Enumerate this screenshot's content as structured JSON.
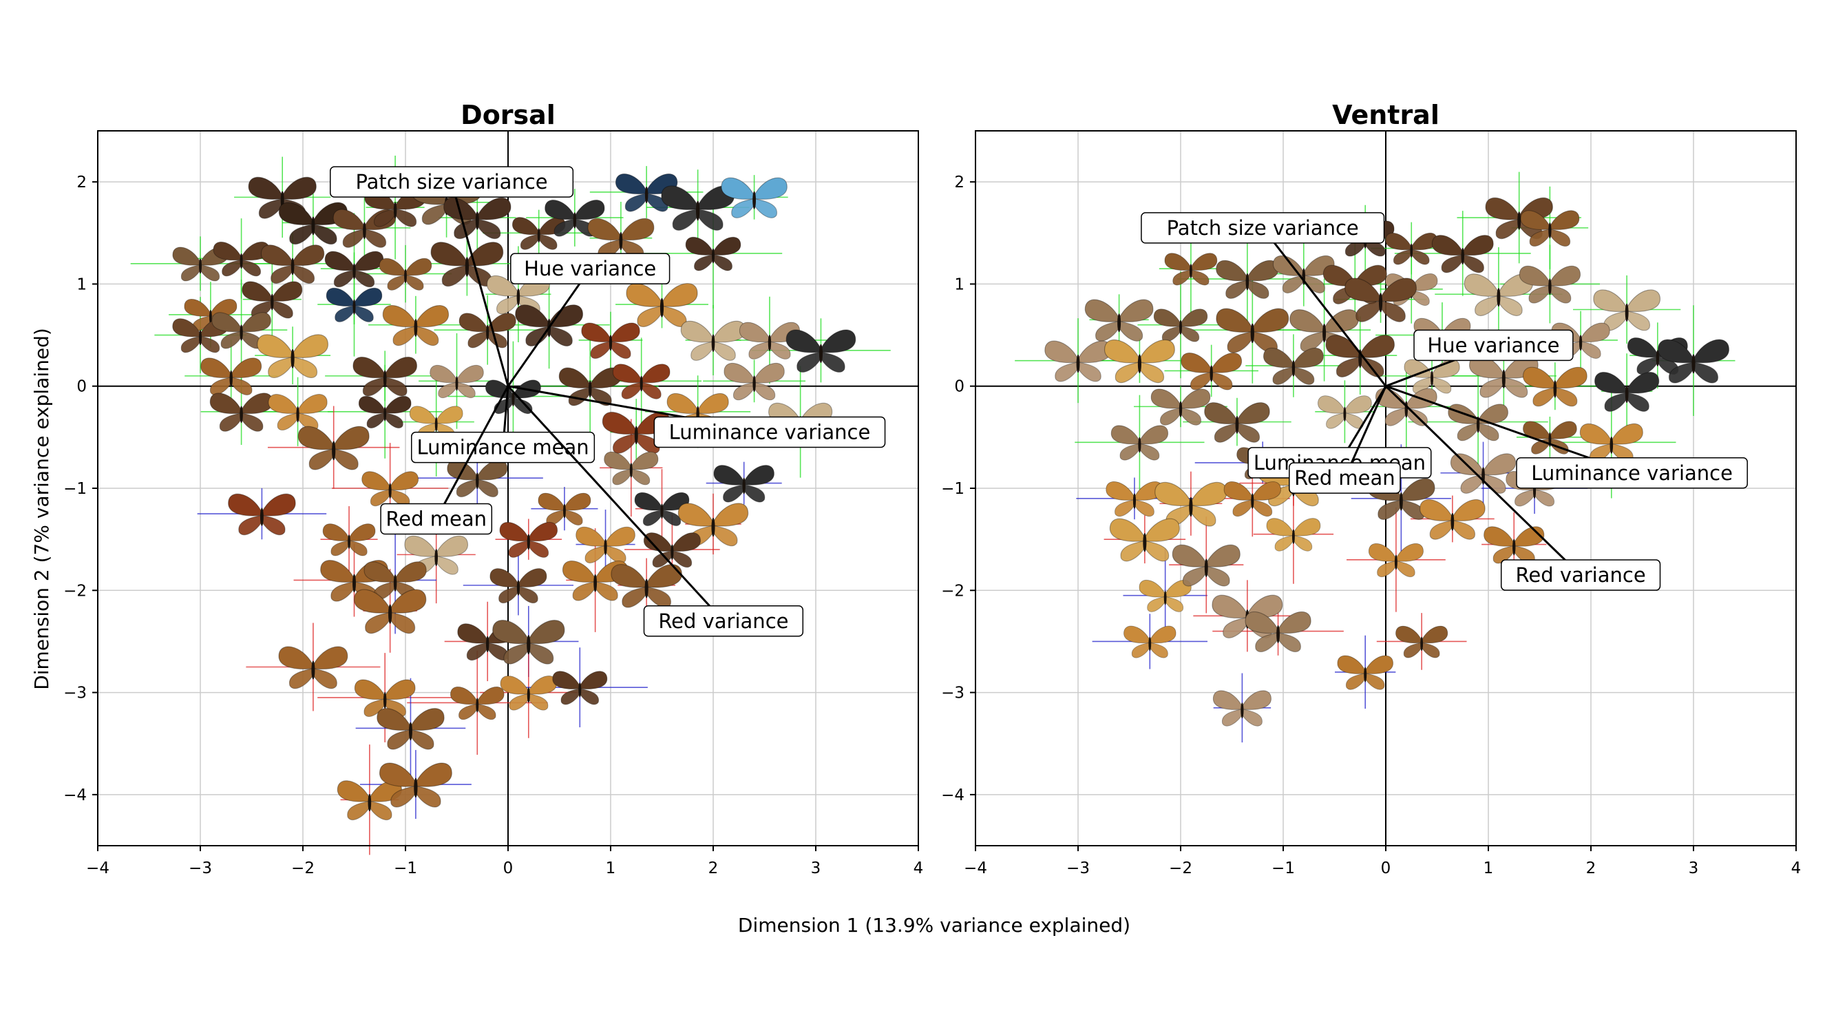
{
  "figure": {
    "xlabel": "Dimension 1 (13.9% variance explained)",
    "ylabel": "Dimension 2 (7% variance explained)"
  },
  "colors": {
    "frame": "#000000",
    "grid": "#cccccc",
    "axis_line": "#000000",
    "errorbar_green": "#22dd22",
    "errorbar_blue": "#2222cc",
    "errorbar_red": "#dd2222",
    "wing_palette": [
      "#3a2618",
      "#4a3020",
      "#5c3a22",
      "#6b4528",
      "#7a5a3a",
      "#8b5a2b",
      "#a0642a",
      "#b8782e",
      "#c98a3a",
      "#d4a04a",
      "#9a7a58",
      "#b09070",
      "#c8b08a",
      "#2e2e2e",
      "#1f3a5a",
      "#5fa8d3",
      "#8a3a1a"
    ]
  },
  "chart_data": [
    {
      "type": "scatter",
      "title": "Dorsal",
      "xlim": [
        -4,
        4
      ],
      "ylim": [
        -4.5,
        2.5
      ],
      "xticks": [
        -4,
        -3,
        -2,
        -1,
        0,
        1,
        2,
        3,
        4
      ],
      "yticks": [
        -4,
        -3,
        -2,
        -1,
        0,
        1,
        2
      ],
      "xtick_labels": [
        "−4",
        "−3",
        "−2",
        "−1",
        "0",
        "1",
        "2",
        "3",
        "4"
      ],
      "ytick_labels": [
        "−4",
        "−3",
        "−2",
        "−1",
        "0",
        "1",
        "2"
      ],
      "grid": true,
      "loadings": [
        {
          "label": "Patch size variance",
          "x": -0.55,
          "y": 2.0
        },
        {
          "label": "Hue variance",
          "x": 0.8,
          "y": 1.15
        },
        {
          "label": "Luminance variance",
          "x": 2.55,
          "y": -0.45
        },
        {
          "label": "Luminance mean",
          "x": -0.05,
          "y": -0.6
        },
        {
          "label": "Red mean",
          "x": -0.7,
          "y": -1.3
        },
        {
          "label": "Red variance",
          "x": 2.1,
          "y": -2.3
        }
      ],
      "points": [
        {
          "x": -2.2,
          "y": 1.85,
          "c": 1
        },
        {
          "x": -1.9,
          "y": 1.6,
          "c": 0
        },
        {
          "x": -1.4,
          "y": 1.55,
          "c": 3
        },
        {
          "x": -1.1,
          "y": 1.75,
          "c": 2
        },
        {
          "x": -0.6,
          "y": 1.8,
          "c": 4
        },
        {
          "x": -0.3,
          "y": 1.65,
          "c": 1
        },
        {
          "x": 0.3,
          "y": 1.5,
          "c": 2
        },
        {
          "x": 0.65,
          "y": 1.65,
          "c": 13
        },
        {
          "x": 1.35,
          "y": 1.9,
          "c": 14
        },
        {
          "x": 1.85,
          "y": 1.75,
          "c": 13
        },
        {
          "x": 2.4,
          "y": 1.85,
          "c": 15
        },
        {
          "x": 2.0,
          "y": 1.3,
          "c": 1
        },
        {
          "x": 1.1,
          "y": 1.45,
          "c": 5
        },
        {
          "x": -3.0,
          "y": 1.2,
          "c": 4
        },
        {
          "x": -2.6,
          "y": 1.25,
          "c": 2
        },
        {
          "x": -2.1,
          "y": 1.2,
          "c": 3
        },
        {
          "x": -1.5,
          "y": 1.15,
          "c": 1
        },
        {
          "x": -1.0,
          "y": 1.1,
          "c": 5
        },
        {
          "x": -0.4,
          "y": 1.2,
          "c": 2
        },
        {
          "x": 0.1,
          "y": 0.9,
          "c": 12
        },
        {
          "x": -2.9,
          "y": 0.7,
          "c": 6
        },
        {
          "x": -2.3,
          "y": 0.85,
          "c": 2
        },
        {
          "x": -1.5,
          "y": 0.8,
          "c": 14
        },
        {
          "x": -0.9,
          "y": 0.6,
          "c": 7
        },
        {
          "x": -0.2,
          "y": 0.55,
          "c": 3
        },
        {
          "x": 0.4,
          "y": 0.6,
          "c": 1
        },
        {
          "x": 1.0,
          "y": 0.45,
          "c": 16
        },
        {
          "x": 1.5,
          "y": 0.8,
          "c": 8
        },
        {
          "x": 2.0,
          "y": 0.45,
          "c": 12
        },
        {
          "x": 2.55,
          "y": 0.45,
          "c": 11
        },
        {
          "x": 3.05,
          "y": 0.35,
          "c": 13
        },
        {
          "x": -3.0,
          "y": 0.5,
          "c": 3
        },
        {
          "x": -2.6,
          "y": 0.55,
          "c": 4
        },
        {
          "x": -2.7,
          "y": 0.1,
          "c": 6
        },
        {
          "x": -2.1,
          "y": 0.3,
          "c": 9
        },
        {
          "x": -1.2,
          "y": 0.1,
          "c": 2
        },
        {
          "x": -0.5,
          "y": 0.05,
          "c": 11
        },
        {
          "x": 0.05,
          "y": -0.1,
          "c": 13
        },
        {
          "x": 0.8,
          "y": 0.0,
          "c": 2
        },
        {
          "x": 1.3,
          "y": 0.05,
          "c": 16
        },
        {
          "x": 2.4,
          "y": 0.05,
          "c": 11
        },
        {
          "x": -2.6,
          "y": -0.25,
          "c": 3
        },
        {
          "x": -2.05,
          "y": -0.25,
          "c": 8
        },
        {
          "x": -1.2,
          "y": -0.25,
          "c": 1
        },
        {
          "x": -0.7,
          "y": -0.35,
          "c": 9
        },
        {
          "x": 1.25,
          "y": -0.45,
          "c": 16
        },
        {
          "x": 1.85,
          "y": -0.25,
          "c": 8
        },
        {
          "x": 2.85,
          "y": -0.35,
          "c": 12
        },
        {
          "x": -1.7,
          "y": -0.6,
          "c": 5
        },
        {
          "x": 1.2,
          "y": -0.8,
          "c": 10
        },
        {
          "x": 2.3,
          "y": -0.95,
          "c": 13
        },
        {
          "x": -1.15,
          "y": -1.0,
          "c": 7
        },
        {
          "x": -0.3,
          "y": -0.9,
          "c": 4
        },
        {
          "x": 0.55,
          "y": -1.2,
          "c": 6
        },
        {
          "x": 1.5,
          "y": -1.2,
          "c": 13
        },
        {
          "x": -2.4,
          "y": -1.25,
          "c": 16
        },
        {
          "x": 2.0,
          "y": -1.35,
          "c": 8
        },
        {
          "x": -1.55,
          "y": -1.5,
          "c": 6
        },
        {
          "x": -0.7,
          "y": -1.65,
          "c": 12
        },
        {
          "x": 0.2,
          "y": -1.5,
          "c": 16
        },
        {
          "x": 0.95,
          "y": -1.55,
          "c": 8
        },
        {
          "x": 1.6,
          "y": -1.6,
          "c": 2
        },
        {
          "x": -1.5,
          "y": -1.9,
          "c": 6
        },
        {
          "x": -1.1,
          "y": -1.9,
          "c": 5
        },
        {
          "x": 0.1,
          "y": -1.95,
          "c": 3
        },
        {
          "x": 0.85,
          "y": -1.9,
          "c": 7
        },
        {
          "x": 1.35,
          "y": -1.95,
          "c": 5
        },
        {
          "x": -1.15,
          "y": -2.2,
          "c": 6
        },
        {
          "x": -0.2,
          "y": -2.5,
          "c": 2
        },
        {
          "x": 0.2,
          "y": -2.5,
          "c": 4
        },
        {
          "x": -1.9,
          "y": -2.75,
          "c": 6
        },
        {
          "x": -1.2,
          "y": -3.05,
          "c": 7
        },
        {
          "x": -0.3,
          "y": -3.1,
          "c": 6
        },
        {
          "x": 0.2,
          "y": -3.0,
          "c": 8
        },
        {
          "x": 0.7,
          "y": -2.95,
          "c": 2
        },
        {
          "x": -0.95,
          "y": -3.35,
          "c": 5
        },
        {
          "x": -1.35,
          "y": -4.05,
          "c": 7
        },
        {
          "x": -0.9,
          "y": -3.9,
          "c": 6
        }
      ]
    },
    {
      "type": "scatter",
      "title": "Ventral",
      "xlim": [
        -4,
        4
      ],
      "ylim": [
        -4.5,
        2.5
      ],
      "xticks": [
        -4,
        -3,
        -2,
        -1,
        0,
        1,
        2,
        3,
        4
      ],
      "yticks": [
        -4,
        -3,
        -2,
        -1,
        0,
        1,
        2
      ],
      "xtick_labels": [
        "−4",
        "−3",
        "−2",
        "−1",
        "0",
        "1",
        "2",
        "3",
        "4"
      ],
      "ytick_labels": [
        "−4",
        "−3",
        "−2",
        "−1",
        "0",
        "1",
        "2"
      ],
      "grid": true,
      "loadings": [
        {
          "label": "Patch size variance",
          "x": -1.2,
          "y": 1.55
        },
        {
          "label": "Hue variance",
          "x": 1.05,
          "y": 0.4
        },
        {
          "label": "Luminance variance",
          "x": 2.4,
          "y": -0.85
        },
        {
          "label": "Luminance mean",
          "x": -0.45,
          "y": -0.75
        },
        {
          "label": "Red mean",
          "x": -0.4,
          "y": -0.9
        },
        {
          "label": "Red variance",
          "x": 1.9,
          "y": -1.85
        }
      ],
      "points": [
        {
          "x": -0.2,
          "y": 1.45,
          "c": 1
        },
        {
          "x": 0.25,
          "y": 1.35,
          "c": 3
        },
        {
          "x": 0.75,
          "y": 1.3,
          "c": 2
        },
        {
          "x": 1.3,
          "y": 1.65,
          "c": 3
        },
        {
          "x": 1.6,
          "y": 1.55,
          "c": 5
        },
        {
          "x": -1.9,
          "y": 1.15,
          "c": 5
        },
        {
          "x": -1.35,
          "y": 1.05,
          "c": 4
        },
        {
          "x": -0.8,
          "y": 1.1,
          "c": 10
        },
        {
          "x": -0.3,
          "y": 1.0,
          "c": 3
        },
        {
          "x": 0.25,
          "y": 0.95,
          "c": 11
        },
        {
          "x": 1.1,
          "y": 0.9,
          "c": 12
        },
        {
          "x": 1.6,
          "y": 1.0,
          "c": 10
        },
        {
          "x": 2.35,
          "y": 0.75,
          "c": 12
        },
        {
          "x": -2.6,
          "y": 0.65,
          "c": 10
        },
        {
          "x": -2.0,
          "y": 0.6,
          "c": 4
        },
        {
          "x": -1.3,
          "y": 0.55,
          "c": 5
        },
        {
          "x": -0.6,
          "y": 0.55,
          "c": 10
        },
        {
          "x": -0.05,
          "y": 0.85,
          "c": 3
        },
        {
          "x": 0.55,
          "y": 0.5,
          "c": 11
        },
        {
          "x": 1.9,
          "y": 0.45,
          "c": 11
        },
        {
          "x": 2.65,
          "y": 0.3,
          "c": 13
        },
        {
          "x": 3.0,
          "y": 0.25,
          "c": 13
        },
        {
          "x": -3.0,
          "y": 0.25,
          "c": 11
        },
        {
          "x": -2.4,
          "y": 0.25,
          "c": 9
        },
        {
          "x": -1.7,
          "y": 0.15,
          "c": 6
        },
        {
          "x": -0.9,
          "y": 0.2,
          "c": 4
        },
        {
          "x": -0.25,
          "y": 0.3,
          "c": 3
        },
        {
          "x": 0.45,
          "y": 0.1,
          "c": 12
        },
        {
          "x": 1.15,
          "y": 0.1,
          "c": 11
        },
        {
          "x": 1.65,
          "y": 0.0,
          "c": 7
        },
        {
          "x": 2.35,
          "y": -0.05,
          "c": 13
        },
        {
          "x": -2.0,
          "y": -0.2,
          "c": 10
        },
        {
          "x": -1.45,
          "y": -0.35,
          "c": 4
        },
        {
          "x": -0.4,
          "y": -0.25,
          "c": 12
        },
        {
          "x": 0.2,
          "y": -0.2,
          "c": 11
        },
        {
          "x": 0.9,
          "y": -0.35,
          "c": 10
        },
        {
          "x": 1.6,
          "y": -0.5,
          "c": 5
        },
        {
          "x": 2.2,
          "y": -0.55,
          "c": 8
        },
        {
          "x": -2.4,
          "y": -0.55,
          "c": 10
        },
        {
          "x": -1.2,
          "y": -0.75,
          "c": 4
        },
        {
          "x": -0.9,
          "y": -0.95,
          "c": 9
        },
        {
          "x": 0.95,
          "y": -0.85,
          "c": 11
        },
        {
          "x": 1.45,
          "y": -1.0,
          "c": 11
        },
        {
          "x": -2.45,
          "y": -1.1,
          "c": 8
        },
        {
          "x": -1.9,
          "y": -1.15,
          "c": 9
        },
        {
          "x": -1.3,
          "y": -1.1,
          "c": 7
        },
        {
          "x": 0.15,
          "y": -1.1,
          "c": 4
        },
        {
          "x": 0.65,
          "y": -1.3,
          "c": 8
        },
        {
          "x": 1.25,
          "y": -1.55,
          "c": 7
        },
        {
          "x": -2.35,
          "y": -1.5,
          "c": 9
        },
        {
          "x": -0.9,
          "y": -1.45,
          "c": 9
        },
        {
          "x": 0.1,
          "y": -1.7,
          "c": 8
        },
        {
          "x": -2.15,
          "y": -2.05,
          "c": 9
        },
        {
          "x": -1.75,
          "y": -1.75,
          "c": 10
        },
        {
          "x": -1.35,
          "y": -2.25,
          "c": 11
        },
        {
          "x": -1.05,
          "y": -2.4,
          "c": 10
        },
        {
          "x": 0.35,
          "y": -2.5,
          "c": 5
        },
        {
          "x": -2.3,
          "y": -2.5,
          "c": 8
        },
        {
          "x": -0.2,
          "y": -2.8,
          "c": 7
        },
        {
          "x": -1.4,
          "y": -3.15,
          "c": 11
        }
      ]
    }
  ]
}
